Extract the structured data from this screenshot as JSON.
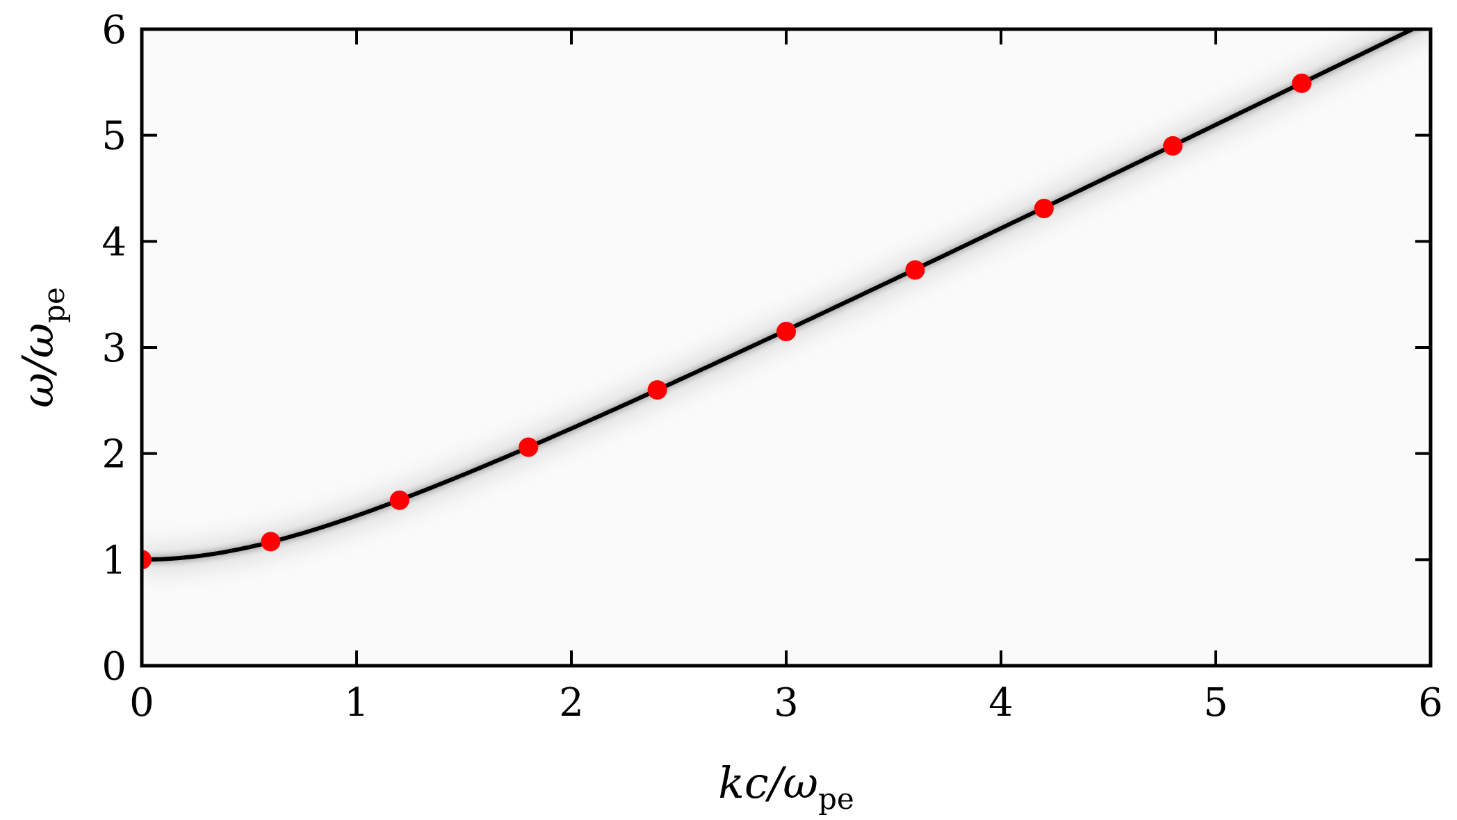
{
  "chart_data": {
    "type": "scatter",
    "xlabel": {
      "main": "kc/ω",
      "sub": "pe"
    },
    "ylabel": {
      "main": "ω/ω",
      "sub": "pe"
    },
    "xlim": [
      0,
      6
    ],
    "ylim": [
      0,
      6
    ],
    "x_ticks": [
      "0",
      "1",
      "2",
      "3",
      "4",
      "5",
      "6"
    ],
    "y_ticks": [
      "0",
      "1",
      "2",
      "3",
      "4",
      "5",
      "6"
    ],
    "grid": false,
    "legend": "none",
    "background": "grayscale intensity map",
    "series": [
      {
        "kind": "points",
        "color": "#ff0000",
        "x": [
          0.0,
          0.6,
          1.2,
          1.8,
          2.4,
          3.0,
          3.6,
          4.2,
          4.8,
          5.4
        ],
        "y": [
          1.0,
          1.17,
          1.56,
          2.06,
          2.6,
          3.15,
          3.73,
          4.31,
          4.9,
          5.49
        ]
      },
      {
        "kind": "curve",
        "color": "#000000",
        "relation": "ω² = ω_pe² + k²c²"
      }
    ]
  }
}
